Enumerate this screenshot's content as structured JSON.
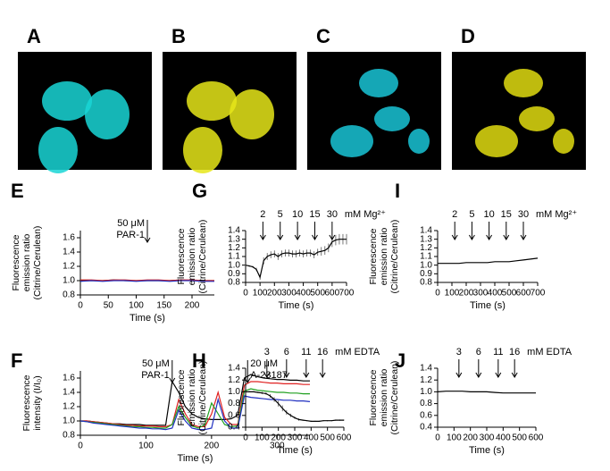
{
  "images": [
    {
      "label": "A",
      "color": "#19d6d6"
    },
    {
      "label": "B",
      "color": "#e6e619"
    },
    {
      "label": "C",
      "color": "#19c4d6"
    },
    {
      "label": "D",
      "color": "#e0dc10"
    }
  ],
  "chart_data": [
    {
      "type": "line",
      "panel": "E",
      "ylabel": [
        "Fluorescence",
        "emission ratio",
        "(Citrine/Cerulean)"
      ],
      "xlabel": "Time (s)",
      "xlim": [
        0,
        240
      ],
      "xticks": [
        0,
        50,
        100,
        150,
        200
      ],
      "ylim": [
        0.8,
        1.7
      ],
      "yticks": [
        0.8,
        {
          "value": 1,
          "label": "1.0"
        },
        1.2,
        1.4,
        1.6
      ],
      "x": [
        0,
        20,
        40,
        60,
        80,
        100,
        120,
        140,
        160,
        180,
        200,
        220,
        240
      ],
      "series": [
        {
          "color": "#000000",
          "values": [
            1.0,
            1.0,
            1.0,
            1.01,
            1.0,
            1.0,
            1.0,
            1.0,
            1.0,
            1.01,
            1.0,
            1.0,
            1.0
          ]
        },
        {
          "color": "#d62020",
          "values": [
            1.01,
            1.01,
            1.0,
            1.01,
            1.01,
            1.0,
            1.01,
            1.01,
            1.0,
            1.01,
            1.01,
            1.0,
            1.0
          ]
        },
        {
          "color": "#2030c0",
          "values": [
            0.99,
            1.0,
            0.99,
            1.0,
            1.0,
            0.99,
            1.0,
            1.0,
            0.99,
            1.0,
            1.0,
            0.99,
            0.99
          ]
        }
      ],
      "annotations": [
        {
          "x": 120,
          "text": [
            "50 μM",
            "PAR-1"
          ]
        }
      ]
    },
    {
      "type": "line",
      "panel": "F",
      "ylabel": [
        "Fluorescence",
        "intensity (I/I₀)"
      ],
      "xlabel": "Time (s)",
      "xlim": [
        0,
        350
      ],
      "xticks": [
        0,
        100,
        200,
        300
      ],
      "ylim": [
        0.8,
        1.7
      ],
      "yticks": [
        0.8,
        {
          "value": 1,
          "label": "1.0"
        },
        1.2,
        1.4,
        1.6
      ],
      "x": [
        0,
        10,
        20,
        30,
        40,
        50,
        60,
        70,
        80,
        90,
        100,
        110,
        120,
        130,
        140,
        150,
        160,
        170,
        180,
        190,
        200,
        210,
        220,
        230,
        240,
        250,
        260,
        270,
        280,
        290,
        300,
        310,
        320,
        330,
        340,
        350
      ],
      "series": [
        {
          "color": "#000000",
          "values": [
            1.0,
            1.0,
            0.99,
            0.98,
            0.97,
            0.96,
            0.96,
            0.95,
            0.95,
            0.95,
            0.94,
            0.94,
            0.94,
            0.94,
            1.55,
            1.4,
            1.2,
            1.1,
            1.05,
            1.03,
            1.02,
            1.02,
            1.02,
            1.03,
            1.08,
            1.6,
            1.65,
            1.62,
            1.6,
            1.59,
            1.58,
            1.58,
            1.57,
            1.57,
            1.56,
            1.56
          ]
        },
        {
          "color": "#e02020",
          "values": [
            1.0,
            1.0,
            0.99,
            0.98,
            0.97,
            0.96,
            0.95,
            0.94,
            0.94,
            0.93,
            0.93,
            0.93,
            0.92,
            0.92,
            0.95,
            1.3,
            1.1,
            0.95,
            0.92,
            0.92,
            1.1,
            1.4,
            1.05,
            0.95,
            0.95,
            1.5,
            1.55,
            1.55,
            1.54,
            1.53,
            1.53,
            1.52,
            1.52,
            1.52,
            1.51,
            1.51
          ]
        },
        {
          "color": "#20a020",
          "values": [
            1.0,
            0.99,
            0.98,
            0.97,
            0.96,
            0.95,
            0.94,
            0.93,
            0.92,
            0.92,
            0.91,
            0.91,
            0.9,
            0.9,
            0.95,
            1.2,
            1.05,
            0.93,
            0.9,
            0.95,
            1.25,
            1.1,
            0.95,
            0.92,
            0.93,
            1.42,
            1.45,
            1.43,
            1.42,
            1.41,
            1.4,
            1.4,
            1.39,
            1.39,
            1.38,
            1.38
          ]
        },
        {
          "color": "#2030c0",
          "values": [
            1.0,
            0.99,
            0.97,
            0.96,
            0.95,
            0.94,
            0.93,
            0.92,
            0.91,
            0.9,
            0.9,
            0.89,
            0.89,
            0.88,
            0.9,
            1.15,
            1.0,
            0.9,
            0.88,
            0.88,
            0.9,
            1.3,
            1.0,
            0.9,
            0.9,
            1.35,
            1.33,
            1.32,
            1.31,
            1.3,
            1.3,
            1.29,
            1.29,
            1.28,
            1.28,
            1.27
          ]
        }
      ],
      "annotations": [
        {
          "x": 140,
          "text": [
            "50 μM",
            "PAR-1"
          ]
        },
        {
          "x": 255,
          "text": [
            "20 μM",
            "A-23187"
          ]
        }
      ]
    },
    {
      "type": "line",
      "panel": "G",
      "ylabel": [
        "Fluorescence",
        "emission ratio",
        "(Citrine/Cerulean)"
      ],
      "xlabel": "Time (s)",
      "xlim": [
        0,
        700
      ],
      "xticks": [
        0,
        100,
        200,
        300,
        400,
        500,
        600,
        700
      ],
      "ylim": [
        0.8,
        1.4
      ],
      "yticks": [
        0.8,
        0.9,
        {
          "value": 1,
          "label": "1.0"
        },
        1.1,
        1.2,
        1.3,
        1.4
      ],
      "x": [
        0,
        25,
        50,
        75,
        100,
        125,
        150,
        175,
        200,
        225,
        250,
        275,
        300,
        325,
        350,
        375,
        400,
        425,
        450,
        475,
        500,
        525,
        550,
        575,
        600,
        625,
        650,
        675,
        700
      ],
      "series": [
        {
          "color": "#000000",
          "values": [
            1.0,
            0.99,
            0.98,
            0.95,
            0.86,
            1.05,
            1.1,
            1.12,
            1.13,
            1.1,
            1.13,
            1.14,
            1.14,
            1.13,
            1.13,
            1.14,
            1.13,
            1.14,
            1.14,
            1.12,
            1.15,
            1.16,
            1.17,
            1.2,
            1.27,
            1.29,
            1.3,
            1.3,
            1.3
          ],
          "errors": [
            0.01,
            0.01,
            0.01,
            0.02,
            0.03,
            0.04,
            0.04,
            0.04,
            0.04,
            0.04,
            0.04,
            0.04,
            0.04,
            0.04,
            0.04,
            0.04,
            0.04,
            0.04,
            0.04,
            0.04,
            0.04,
            0.05,
            0.05,
            0.05,
            0.06,
            0.06,
            0.06,
            0.06,
            0.06
          ]
        }
      ],
      "annotations": [
        {
          "x": 120,
          "text": "2"
        },
        {
          "x": 240,
          "text": "5"
        },
        {
          "x": 360,
          "text": "10"
        },
        {
          "x": 480,
          "text": "15"
        },
        {
          "x": 600,
          "text": "30"
        }
      ],
      "annotation_unit": "mM Mg²⁺"
    },
    {
      "type": "line",
      "panel": "H",
      "ylabel": [
        "Fluorescence",
        "emission ratio",
        "(Citrine/Cerulean)"
      ],
      "xlabel": "Time (s)",
      "xlim": [
        0,
        600
      ],
      "xticks": [
        0,
        100,
        200,
        300,
        400,
        500,
        600
      ],
      "ylim": [
        0.4,
        1.4
      ],
      "yticks": [
        0.4,
        0.6,
        0.8,
        {
          "value": 1,
          "label": "1.0"
        },
        1.2,
        1.4
      ],
      "x": [
        0,
        25,
        50,
        75,
        100,
        125,
        150,
        175,
        200,
        225,
        250,
        275,
        300,
        325,
        350,
        375,
        400,
        425,
        450,
        475,
        500,
        525,
        550,
        575,
        600
      ],
      "series": [
        {
          "color": "#000000",
          "values": [
            1.0,
            1.0,
            1.0,
            0.99,
            0.98,
            0.97,
            0.93,
            0.87,
            0.8,
            0.72,
            0.65,
            0.6,
            0.56,
            0.53,
            0.52,
            0.51,
            0.5,
            0.5,
            0.5,
            0.51,
            0.51,
            0.51,
            0.52,
            0.52,
            0.52
          ],
          "errors": [
            0.01,
            0.01,
            0.01,
            0.01,
            0.02,
            0.02,
            0.03,
            0.04,
            0.05,
            0.05,
            0.04,
            0.03,
            0.02,
            0.02,
            0.01,
            0.01,
            0.01,
            0.01,
            0.01,
            0.01,
            0.01,
            0.01,
            0.01,
            0.01,
            0.01
          ]
        }
      ],
      "annotations": [
        {
          "x": 130,
          "text": "3"
        },
        {
          "x": 250,
          "text": "6"
        },
        {
          "x": 370,
          "text": "11"
        },
        {
          "x": 470,
          "text": "16"
        }
      ],
      "annotation_unit": "mM EDTA"
    },
    {
      "type": "line",
      "panel": "I",
      "ylabel": [
        "Fluorescence",
        "emission ratio",
        "(Citrine/Cerulean)"
      ],
      "xlabel": "Time (s)",
      "xlim": [
        0,
        700
      ],
      "xticks": [
        0,
        100,
        200,
        300,
        400,
        500,
        600,
        700
      ],
      "ylim": [
        0.8,
        1.4
      ],
      "yticks": [
        0.8,
        0.9,
        {
          "value": 1,
          "label": "1.0"
        },
        1.1,
        1.2,
        1.3,
        1.4
      ],
      "x": [
        0,
        50,
        100,
        150,
        200,
        250,
        300,
        350,
        400,
        450,
        500,
        550,
        600,
        650,
        700
      ],
      "series": [
        {
          "color": "#000000",
          "values": [
            1.02,
            1.02,
            1.02,
            1.02,
            1.03,
            1.03,
            1.03,
            1.03,
            1.04,
            1.04,
            1.04,
            1.05,
            1.06,
            1.07,
            1.08
          ]
        }
      ],
      "annotations": [
        {
          "x": 120,
          "text": "2"
        },
        {
          "x": 240,
          "text": "5"
        },
        {
          "x": 360,
          "text": "10"
        },
        {
          "x": 480,
          "text": "15"
        },
        {
          "x": 600,
          "text": "30"
        }
      ],
      "annotation_unit": "mM Mg²⁺"
    },
    {
      "type": "line",
      "panel": "J",
      "ylabel": [
        "Fluorescence",
        "emission ratio",
        "(Citrine/Cerulean)"
      ],
      "xlabel": "Time (s)",
      "xlim": [
        0,
        600
      ],
      "xticks": [
        0,
        100,
        200,
        300,
        400,
        500,
        600
      ],
      "ylim": [
        0.4,
        1.4
      ],
      "yticks": [
        0.4,
        0.6,
        0.8,
        {
          "value": 1,
          "label": "1.0"
        },
        1.2,
        1.4
      ],
      "x": [
        0,
        50,
        100,
        150,
        200,
        250,
        300,
        350,
        400,
        450,
        500,
        550,
        600
      ],
      "series": [
        {
          "color": "#000000",
          "values": [
            1.0,
            1.01,
            1.01,
            1.01,
            1.0,
            1.0,
            1.0,
            0.99,
            0.98,
            0.98,
            0.98,
            0.98,
            0.98
          ]
        }
      ],
      "annotations": [
        {
          "x": 130,
          "text": "3"
        },
        {
          "x": 250,
          "text": "6"
        },
        {
          "x": 370,
          "text": "11"
        },
        {
          "x": 470,
          "text": "16"
        }
      ],
      "annotation_unit": "mM EDTA"
    }
  ]
}
